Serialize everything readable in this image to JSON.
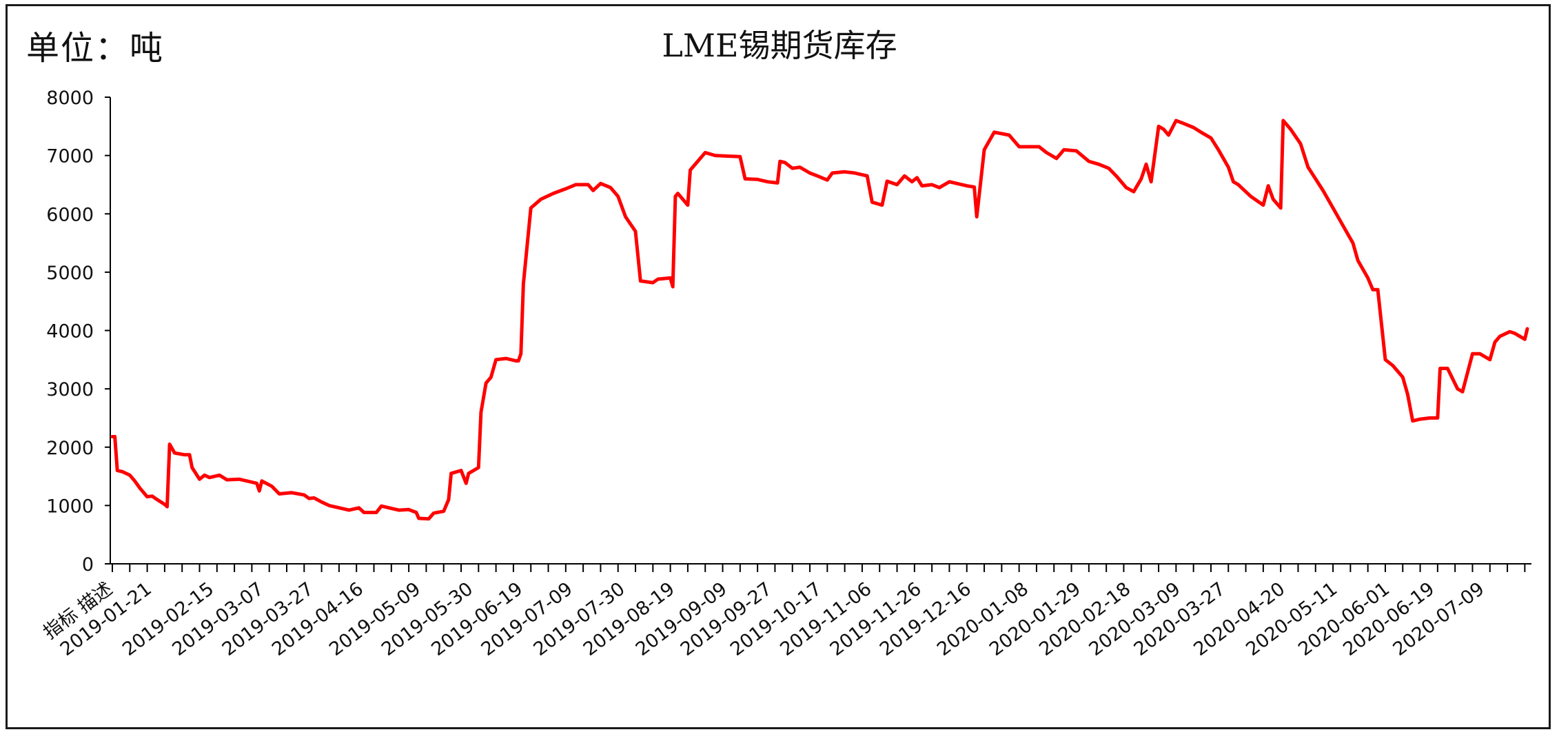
{
  "chart_data": {
    "type": "line",
    "title": "LME锡期货库存",
    "unit_label": "单位：吨",
    "xlabel": "",
    "ylabel": "",
    "ylim": [
      0,
      8000
    ],
    "yticks": [
      0,
      1000,
      2000,
      3000,
      4000,
      5000,
      6000,
      7000,
      8000
    ],
    "first_category_label": "指标 描述",
    "xtick_labels": [
      "2019-01-21",
      "2019-02-15",
      "2019-03-07",
      "2019-03-27",
      "2019-04-16",
      "2019-05-09",
      "2019-05-30",
      "2019-06-19",
      "2019-07-09",
      "2019-07-30",
      "2019-08-19",
      "2019-09-09",
      "2019-09-27",
      "2019-10-17",
      "2019-11-06",
      "2019-11-26",
      "2019-12-16",
      "2020-01-08",
      "2020-01-29",
      "2020-02-18",
      "2020-03-09",
      "2020-03-27",
      "2020-04-20",
      "2020-05-11",
      "2020-06-01",
      "2020-06-19",
      "2020-07-09"
    ],
    "grid": false,
    "legend": "none",
    "series": [
      {
        "color": "#ff0000",
        "points": [
          [
            "2019-01-07",
            2180
          ],
          [
            "2019-01-08",
            2180
          ],
          [
            "2019-01-09",
            1600
          ],
          [
            "2019-01-11",
            1580
          ],
          [
            "2019-01-14",
            1520
          ],
          [
            "2019-01-16",
            1420
          ],
          [
            "2019-01-18",
            1300
          ],
          [
            "2019-01-21",
            1150
          ],
          [
            "2019-01-23",
            1160
          ],
          [
            "2019-01-25",
            1100
          ],
          [
            "2019-01-28",
            1020
          ],
          [
            "2019-01-29",
            980
          ],
          [
            "2019-01-30",
            2050
          ],
          [
            "2019-02-01",
            1900
          ],
          [
            "2019-02-05",
            1870
          ],
          [
            "2019-02-07",
            1870
          ],
          [
            "2019-02-08",
            1650
          ],
          [
            "2019-02-11",
            1450
          ],
          [
            "2019-02-13",
            1520
          ],
          [
            "2019-02-15",
            1480
          ],
          [
            "2019-02-19",
            1520
          ],
          [
            "2019-02-22",
            1440
          ],
          [
            "2019-02-27",
            1450
          ],
          [
            "2019-03-04",
            1400
          ],
          [
            "2019-03-06",
            1380
          ],
          [
            "2019-03-07",
            1250
          ],
          [
            "2019-03-08",
            1420
          ],
          [
            "2019-03-12",
            1330
          ],
          [
            "2019-03-15",
            1200
          ],
          [
            "2019-03-20",
            1220
          ],
          [
            "2019-03-25",
            1180
          ],
          [
            "2019-03-27",
            1120
          ],
          [
            "2019-03-29",
            1130
          ],
          [
            "2019-04-01",
            1060
          ],
          [
            "2019-04-04",
            1000
          ],
          [
            "2019-04-09",
            950
          ],
          [
            "2019-04-12",
            920
          ],
          [
            "2019-04-16",
            960
          ],
          [
            "2019-04-18",
            880
          ],
          [
            "2019-04-23",
            880
          ],
          [
            "2019-04-25",
            990
          ],
          [
            "2019-04-29",
            950
          ],
          [
            "2019-05-02",
            920
          ],
          [
            "2019-05-06",
            930
          ],
          [
            "2019-05-09",
            880
          ],
          [
            "2019-05-10",
            780
          ],
          [
            "2019-05-14",
            770
          ],
          [
            "2019-05-16",
            870
          ],
          [
            "2019-05-20",
            900
          ],
          [
            "2019-05-22",
            1100
          ],
          [
            "2019-05-23",
            1550
          ],
          [
            "2019-05-27",
            1600
          ],
          [
            "2019-05-29",
            1380
          ],
          [
            "2019-05-30",
            1550
          ],
          [
            "2019-06-03",
            1650
          ],
          [
            "2019-06-04",
            2600
          ],
          [
            "2019-06-06",
            3100
          ],
          [
            "2019-06-08",
            3200
          ],
          [
            "2019-06-10",
            3500
          ],
          [
            "2019-06-14",
            3520
          ],
          [
            "2019-06-18",
            3480
          ],
          [
            "2019-06-19",
            3480
          ],
          [
            "2019-06-20",
            3600
          ],
          [
            "2019-06-21",
            4800
          ],
          [
            "2019-06-24",
            6100
          ],
          [
            "2019-06-28",
            6250
          ],
          [
            "2019-07-03",
            6350
          ],
          [
            "2019-07-08",
            6430
          ],
          [
            "2019-07-12",
            6500
          ],
          [
            "2019-07-17",
            6500
          ],
          [
            "2019-07-19",
            6400
          ],
          [
            "2019-07-22",
            6520
          ],
          [
            "2019-07-26",
            6450
          ],
          [
            "2019-07-29",
            6300
          ],
          [
            "2019-08-01",
            5950
          ],
          [
            "2019-08-05",
            5700
          ],
          [
            "2019-08-07",
            4850
          ],
          [
            "2019-08-12",
            4820
          ],
          [
            "2019-08-14",
            4880
          ],
          [
            "2019-08-19",
            4900
          ],
          [
            "2019-08-20",
            4750
          ],
          [
            "2019-08-21",
            6300
          ],
          [
            "2019-08-22",
            6350
          ],
          [
            "2019-08-26",
            6150
          ],
          [
            "2019-08-27",
            6750
          ],
          [
            "2019-09-02",
            7050
          ],
          [
            "2019-09-06",
            7000
          ],
          [
            "2019-09-11",
            6990
          ],
          [
            "2019-09-16",
            6980
          ],
          [
            "2019-09-18",
            6600
          ],
          [
            "2019-09-23",
            6590
          ],
          [
            "2019-09-27",
            6550
          ],
          [
            "2019-10-01",
            6530
          ],
          [
            "2019-10-02",
            6900
          ],
          [
            "2019-10-04",
            6880
          ],
          [
            "2019-10-07",
            6780
          ],
          [
            "2019-10-10",
            6800
          ],
          [
            "2019-10-14",
            6700
          ],
          [
            "2019-10-17",
            6650
          ],
          [
            "2019-10-21",
            6580
          ],
          [
            "2019-10-23",
            6700
          ],
          [
            "2019-10-28",
            6720
          ],
          [
            "2019-11-01",
            6700
          ],
          [
            "2019-11-06",
            6650
          ],
          [
            "2019-11-08",
            6200
          ],
          [
            "2019-11-12",
            6150
          ],
          [
            "2019-11-14",
            6560
          ],
          [
            "2019-11-18",
            6500
          ],
          [
            "2019-11-21",
            6650
          ],
          [
            "2019-11-24",
            6550
          ],
          [
            "2019-11-26",
            6620
          ],
          [
            "2019-11-28",
            6480
          ],
          [
            "2019-12-02",
            6500
          ],
          [
            "2019-12-05",
            6450
          ],
          [
            "2019-12-09",
            6550
          ],
          [
            "2019-12-12",
            6520
          ],
          [
            "2019-12-16",
            6480
          ],
          [
            "2019-12-19",
            6460
          ],
          [
            "2019-12-20",
            5950
          ],
          [
            "2019-12-23",
            7100
          ],
          [
            "2019-12-27",
            7400
          ],
          [
            "2020-01-02",
            7350
          ],
          [
            "2020-01-06",
            7150
          ],
          [
            "2020-01-10",
            7150
          ],
          [
            "2020-01-14",
            7150
          ],
          [
            "2020-01-17",
            7050
          ],
          [
            "2020-01-21",
            6950
          ],
          [
            "2020-01-24",
            7100
          ],
          [
            "2020-01-29",
            7080
          ],
          [
            "2020-02-03",
            6900
          ],
          [
            "2020-02-07",
            6850
          ],
          [
            "2020-02-11",
            6780
          ],
          [
            "2020-02-14",
            6650
          ],
          [
            "2020-02-18",
            6450
          ],
          [
            "2020-02-21",
            6380
          ],
          [
            "2020-02-24",
            6600
          ],
          [
            "2020-02-26",
            6850
          ],
          [
            "2020-02-28",
            6550
          ],
          [
            "2020-03-02",
            7500
          ],
          [
            "2020-03-04",
            7450
          ],
          [
            "2020-03-06",
            7350
          ],
          [
            "2020-03-09",
            7600
          ],
          [
            "2020-03-12",
            7550
          ],
          [
            "2020-03-16",
            7480
          ],
          [
            "2020-03-19",
            7400
          ],
          [
            "2020-03-23",
            7300
          ],
          [
            "2020-03-26",
            7100
          ],
          [
            "2020-03-30",
            6800
          ],
          [
            "2020-04-01",
            6550
          ],
          [
            "2020-04-03",
            6500
          ],
          [
            "2020-04-08",
            6300
          ],
          [
            "2020-04-13",
            6150
          ],
          [
            "2020-04-15",
            6480
          ],
          [
            "2020-04-17",
            6250
          ],
          [
            "2020-04-20",
            6100
          ],
          [
            "2020-04-21",
            7600
          ],
          [
            "2020-04-24",
            7450
          ],
          [
            "2020-04-28",
            7200
          ],
          [
            "2020-05-01",
            6800
          ],
          [
            "2020-05-04",
            6600
          ],
          [
            "2020-05-07",
            6400
          ],
          [
            "2020-05-11",
            6100
          ],
          [
            "2020-05-15",
            5800
          ],
          [
            "2020-05-19",
            5500
          ],
          [
            "2020-05-21",
            5200
          ],
          [
            "2020-05-25",
            4900
          ],
          [
            "2020-05-27",
            4700
          ],
          [
            "2020-05-29",
            4700
          ],
          [
            "2020-06-01",
            3500
          ],
          [
            "2020-06-04",
            3400
          ],
          [
            "2020-06-08",
            3200
          ],
          [
            "2020-06-10",
            2900
          ],
          [
            "2020-06-12",
            2450
          ],
          [
            "2020-06-15",
            2480
          ],
          [
            "2020-06-19",
            2500
          ],
          [
            "2020-06-22",
            2500
          ],
          [
            "2020-06-23",
            3350
          ],
          [
            "2020-06-26",
            3350
          ],
          [
            "2020-06-30",
            3000
          ],
          [
            "2020-07-02",
            2950
          ],
          [
            "2020-07-06",
            3600
          ],
          [
            "2020-07-09",
            3600
          ],
          [
            "2020-07-13",
            3500
          ],
          [
            "2020-07-15",
            3800
          ],
          [
            "2020-07-17",
            3900
          ],
          [
            "2020-07-21",
            3980
          ],
          [
            "2020-07-23",
            3950
          ],
          [
            "2020-07-27",
            3850
          ],
          [
            "2020-07-28",
            4030
          ]
        ]
      }
    ]
  }
}
